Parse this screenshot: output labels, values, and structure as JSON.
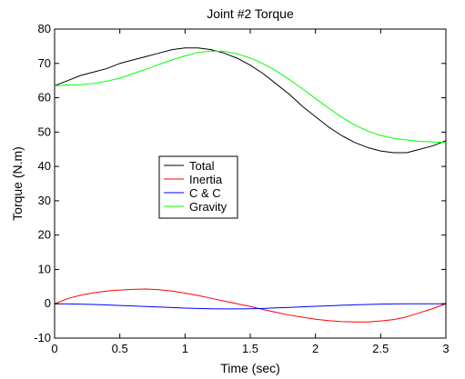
{
  "chart_data": {
    "type": "line",
    "title": "Joint #2 Torque",
    "xlabel": "Time (sec)",
    "ylabel": "Torque (N.m)",
    "xlim": [
      0,
      3
    ],
    "ylim": [
      -10,
      80
    ],
    "xticks": [
      "0",
      "0.5",
      "1",
      "1.5",
      "2",
      "2.5",
      "3"
    ],
    "yticks": [
      "-10",
      "0",
      "10",
      "20",
      "30",
      "40",
      "50",
      "60",
      "70",
      "80"
    ],
    "grid": false,
    "legend_position": "center-left",
    "x": [
      0,
      0.1,
      0.2,
      0.3,
      0.4,
      0.5,
      0.6,
      0.7,
      0.8,
      0.9,
      1.0,
      1.1,
      1.2,
      1.3,
      1.4,
      1.5,
      1.6,
      1.7,
      1.8,
      1.9,
      2.0,
      2.1,
      2.2,
      2.3,
      2.4,
      2.5,
      2.6,
      2.7,
      2.8,
      2.9,
      3.0
    ],
    "series": [
      {
        "name": "Total",
        "color": "#000000",
        "values": [
          63.5,
          65,
          66.5,
          67.5,
          68.5,
          70,
          71,
          72,
          73,
          74,
          74.5,
          74.5,
          74,
          73,
          71.5,
          69.5,
          67,
          64,
          61,
          57.5,
          54.5,
          51.5,
          49,
          47,
          45.5,
          44.5,
          44,
          44,
          45,
          46,
          47.5
        ]
      },
      {
        "name": "Inertia",
        "color": "#ff0000",
        "values": [
          0,
          1.5,
          2.5,
          3.2,
          3.7,
          4.0,
          4.2,
          4.3,
          4.1,
          3.7,
          3.1,
          2.4,
          1.6,
          0.8,
          0,
          -0.8,
          -1.7,
          -2.5,
          -3.3,
          -3.9,
          -4.5,
          -4.9,
          -5.2,
          -5.3,
          -5.3,
          -5.0,
          -4.6,
          -3.8,
          -2.6,
          -1.4,
          0
        ]
      },
      {
        "name": "C & C",
        "color": "#0000ff",
        "values": [
          0,
          -0.05,
          -0.1,
          -0.2,
          -0.35,
          -0.5,
          -0.65,
          -0.8,
          -0.95,
          -1.1,
          -1.25,
          -1.35,
          -1.45,
          -1.5,
          -1.5,
          -1.45,
          -1.35,
          -1.2,
          -1.05,
          -0.9,
          -0.75,
          -0.6,
          -0.45,
          -0.3,
          -0.2,
          -0.1,
          -0.05,
          0,
          0,
          0,
          0
        ]
      },
      {
        "name": "Gravity",
        "color": "#00ff00",
        "values": [
          63.5,
          63.7,
          63.8,
          64.2,
          64.8,
          65.7,
          67,
          68.3,
          69.7,
          71,
          72.2,
          73.2,
          73.6,
          73.5,
          72.8,
          71.6,
          69.9,
          67.8,
          65.3,
          62.6,
          59.8,
          57,
          54.4,
          52.1,
          50.3,
          49,
          48.2,
          47.7,
          47.3,
          47.1,
          47.0
        ]
      }
    ]
  }
}
